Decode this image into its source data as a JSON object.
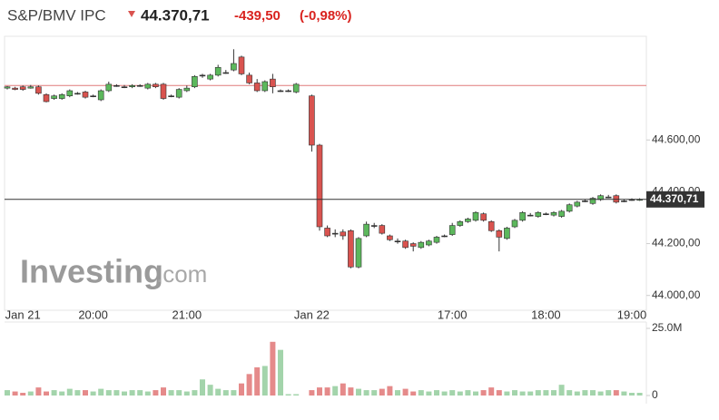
{
  "chart_data": {
    "type": "candlestick",
    "title": "S&P/BMV IPC",
    "price": "44.370,71",
    "change": "-439,50",
    "change_percent": "(-0,98%)",
    "watermark": {
      "brand": "Investing",
      "suffix": ".com"
    },
    "categories": [
      null,
      null,
      "Jan 21",
      null,
      null,
      null,
      null,
      null,
      null,
      null,
      null,
      "20:00",
      null,
      null,
      null,
      null,
      null,
      null,
      null,
      null,
      null,
      null,
      null,
      "21:00",
      null,
      null,
      null,
      null,
      null,
      null,
      null,
      null,
      null,
      null,
      null,
      null,
      null,
      null,
      null,
      "Jan 22",
      null,
      null,
      null,
      null,
      null,
      null,
      null,
      null,
      null,
      null,
      null,
      null,
      null,
      null,
      null,
      null,
      null,
      "17:00",
      null,
      null,
      null,
      null,
      null,
      null,
      null,
      null,
      null,
      null,
      null,
      "18:00",
      null,
      null,
      null,
      null,
      null,
      null,
      null,
      null,
      null,
      null,
      "19:00",
      null
    ],
    "open": [
      44800,
      44800,
      44805,
      44800,
      44805,
      44775,
      44760,
      44760,
      44770,
      44780,
      44785,
      44770,
      44755,
      44790,
      44810,
      44805,
      44805,
      44810,
      44800,
      44815,
      44815,
      44770,
      44765,
      44790,
      44805,
      44850,
      44835,
      44850,
      44860,
      44870,
      44920,
      44850,
      44820,
      44790,
      44835,
      44790,
      44790,
      44785,
      null,
      44770,
      44580,
      44260,
      44240,
      44245,
      44250,
      44110,
      44230,
      44270,
      44270,
      44230,
      44210,
      44210,
      44200,
      44185,
      44195,
      44205,
      44230,
      44235,
      44270,
      44285,
      44290,
      44315,
      44285,
      44250,
      44220,
      44265,
      44290,
      44310,
      44305,
      44315,
      44310,
      44305,
      44325,
      44345,
      44365,
      44355,
      44370,
      44380,
      44385,
      44365,
      44370,
      44370
    ],
    "high": [
      44808,
      44805,
      44810,
      44812,
      44810,
      44780,
      44775,
      44780,
      44795,
      44785,
      44790,
      44775,
      44795,
      44825,
      44815,
      44812,
      44815,
      44815,
      44820,
      44820,
      44820,
      44775,
      44800,
      44810,
      44850,
      44855,
      44855,
      44890,
      44870,
      44950,
      44925,
      44860,
      44835,
      44830,
      44855,
      44795,
      44795,
      44820,
      null,
      44775,
      44585,
      44270,
      44255,
      44255,
      44255,
      44225,
      44285,
      44280,
      44275,
      44235,
      44220,
      44215,
      44205,
      44210,
      44215,
      44230,
      44235,
      44280,
      44290,
      44300,
      44325,
      44320,
      44290,
      44255,
      44265,
      44295,
      44325,
      44318,
      44325,
      44320,
      44325,
      44330,
      44355,
      44365,
      44370,
      44380,
      44390,
      44388,
      44390,
      44370,
      44375,
      44375
    ],
    "low": [
      44795,
      44792,
      44790,
      44798,
      44775,
      44745,
      44755,
      44755,
      44765,
      44775,
      44760,
      44765,
      44750,
      44785,
      44805,
      44800,
      44800,
      44805,
      44795,
      44800,
      44755,
      44765,
      44760,
      44785,
      44800,
      44840,
      44830,
      44845,
      44855,
      44865,
      44850,
      44815,
      44785,
      44785,
      44780,
      44785,
      44785,
      44780,
      null,
      44555,
      44250,
      44225,
      44225,
      44215,
      44105,
      44105,
      44225,
      44260,
      44235,
      44210,
      44200,
      44180,
      44170,
      44180,
      44190,
      44200,
      44225,
      44230,
      44265,
      44280,
      44285,
      44285,
      44245,
      44170,
      44215,
      44260,
      44285,
      44305,
      44300,
      44310,
      44305,
      44300,
      44320,
      44340,
      44360,
      44350,
      44365,
      44375,
      44355,
      44360,
      44365,
      44365
    ],
    "close": [
      44805,
      44795,
      44795,
      44805,
      44780,
      44748,
      44770,
      44775,
      44790,
      44780,
      44765,
      44770,
      44790,
      44815,
      44810,
      44805,
      44810,
      44810,
      44815,
      44805,
      44760,
      44770,
      44795,
      44800,
      44845,
      44850,
      44850,
      44880,
      44860,
      44895,
      44855,
      44820,
      44790,
      44825,
      44805,
      44790,
      44790,
      44815,
      null,
      44580,
      44265,
      44230,
      44240,
      44230,
      44110,
      44220,
      44275,
      44270,
      44240,
      44215,
      44210,
      44185,
      44190,
      44205,
      44210,
      44225,
      44230,
      44270,
      44285,
      44295,
      44320,
      44290,
      44250,
      44225,
      44260,
      44290,
      44320,
      44310,
      44320,
      44315,
      44320,
      44325,
      44350,
      44360,
      44365,
      44375,
      44385,
      44380,
      44360,
      44365,
      44370,
      44370.71
    ],
    "volume": [
      2000000,
      1500000,
      1000000,
      1500000,
      3000000,
      1500000,
      2000000,
      1500000,
      2500000,
      2000000,
      2000000,
      1500000,
      2500000,
      2000000,
      2000000,
      1500000,
      2000000,
      2000000,
      1500000,
      2000000,
      3000000,
      2000000,
      2000000,
      1500000,
      2000000,
      6000000,
      4000000,
      2500000,
      2000000,
      2000000,
      4500000,
      8000000,
      10500000,
      11000000,
      20000000,
      17000000,
      500000,
      500000,
      null,
      2000000,
      3000000,
      3000000,
      3500000,
      4500000,
      3000000,
      2500000,
      2000000,
      2000000,
      2500000,
      3500000,
      2000000,
      2500000,
      1500000,
      2000000,
      1500000,
      2000000,
      1500000,
      2000000,
      1500000,
      2000000,
      1500000,
      2000000,
      3000000,
      2000000,
      1500000,
      2000000,
      1500000,
      1500000,
      2000000,
      2000000,
      2000000,
      4000000,
      2000000,
      1500000,
      2000000,
      2000000,
      1500000,
      2000000,
      2000000,
      1500000,
      1000000,
      1000000
    ],
    "ylim": [
      43950,
      45000
    ],
    "yticks": [
      {
        "value": 44000,
        "label": "44.000,00"
      },
      {
        "value": 44200,
        "label": "44.200,00"
      },
      {
        "value": 44400,
        "label": "44.400,00"
      },
      {
        "value": 44600,
        "label": "44.600,00"
      }
    ],
    "volume_ylim": [
      0,
      25000000
    ],
    "volume_yticks": [
      0,
      {
        "value": 25000000,
        "label": "25.0M"
      }
    ],
    "previous_close": 44810.21,
    "last": {
      "value": 44370.71,
      "label": "44.370,71"
    },
    "up_color": "#5cb85c",
    "down_color": "#d9534f",
    "volume_up_color": "#a3d4ab",
    "volume_down_color": "#e58a8a",
    "previous_close_color": "#e07a7a"
  }
}
